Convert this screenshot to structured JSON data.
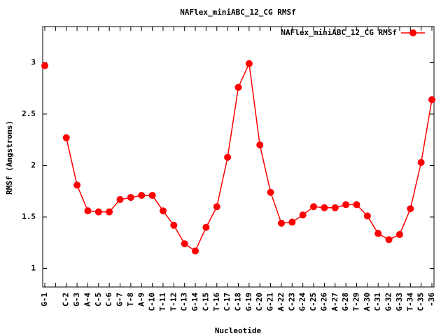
{
  "chart_data": {
    "type": "line",
    "title": "NAFlex_miniABC_12_CG RMSf",
    "x_label": "Nucleotide",
    "y_label": "RMSf (Angstroms)",
    "categories": [
      "G-1",
      null,
      "C-2",
      "G-3",
      "A-4",
      "C-5",
      "C-6",
      "G-7",
      "T-8",
      "A-9",
      "C-10",
      "T-11",
      "T-12",
      "C-13",
      "G-14",
      "C-15",
      "T-16",
      "C-17",
      "C-18",
      "G-19",
      "C-20",
      "G-21",
      "A-22",
      "C-23",
      "G-24",
      "C-25",
      "G-26",
      "A-27",
      "G-28",
      "T-29",
      "A-30",
      "C-31",
      "G-32",
      "G-33",
      "T-34",
      "C-35",
      "-36"
    ],
    "series": [
      {
        "name": "NAFlex_miniABC_12_CG RMSf",
        "color": "#ff0000",
        "values": [
          2.97,
          null,
          2.27,
          1.81,
          1.56,
          1.55,
          1.55,
          1.67,
          1.69,
          1.71,
          1.71,
          1.56,
          1.42,
          1.24,
          1.17,
          1.4,
          1.6,
          2.08,
          2.76,
          2.99,
          2.2,
          1.74,
          1.44,
          1.45,
          1.52,
          1.6,
          1.59,
          1.59,
          1.62,
          1.62,
          1.51,
          1.34,
          1.28,
          1.33,
          1.58,
          2.03,
          2.64
        ]
      }
    ],
    "ylim": [
      0.82,
      3.35
    ],
    "yticks": [
      1,
      {
        "value": 1.5,
        "label": "1.5"
      },
      2,
      {
        "value": 2.5,
        "label": "2.5"
      },
      3
    ],
    "legend": "top-right",
    "grid": false
  }
}
